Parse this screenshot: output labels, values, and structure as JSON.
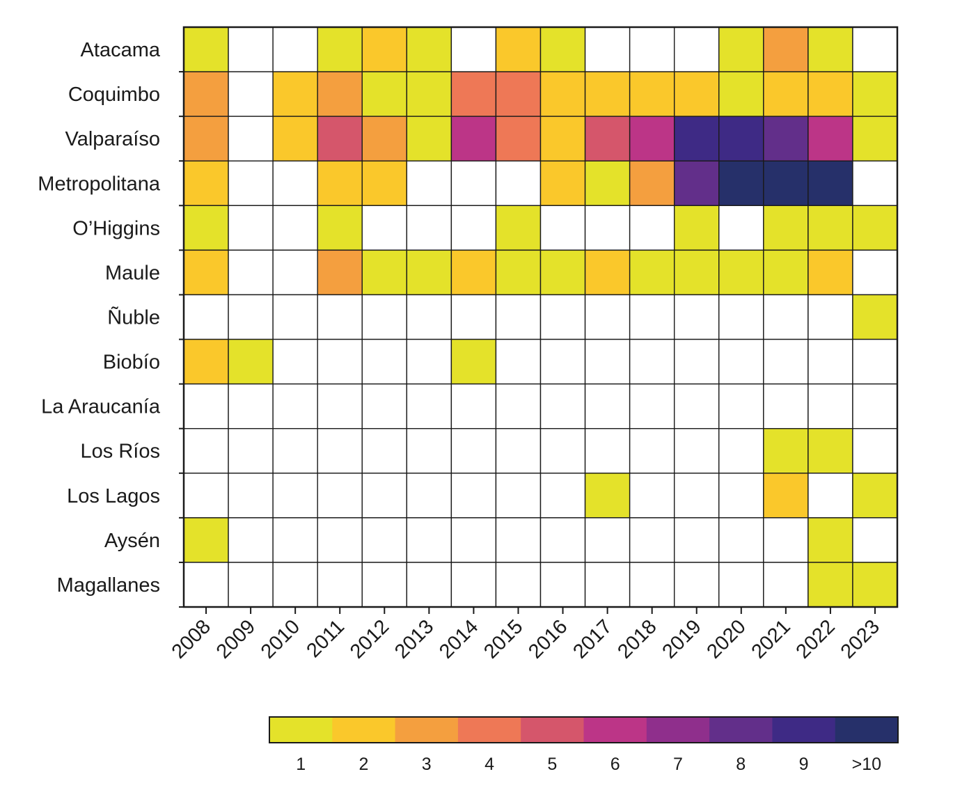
{
  "chart_data": {
    "type": "heatmap",
    "title": "",
    "xlabel": "",
    "ylabel": "",
    "x": [
      "2008",
      "2009",
      "2010",
      "2011",
      "2012",
      "2013",
      "2014",
      "2015",
      "2016",
      "2017",
      "2018",
      "2019",
      "2020",
      "2021",
      "2022",
      "2023"
    ],
    "y": [
      "Atacama",
      "Coquimbo",
      "Valparaíso",
      "Metropolitana",
      "O’Higgins",
      "Maule",
      "Ñuble",
      "Biobío",
      "La Araucanía",
      "Los Ríos",
      "Los Lagos",
      "Aysén",
      "Magallanes"
    ],
    "values": [
      [
        1,
        0,
        0,
        1,
        2,
        1,
        0,
        2,
        1,
        0,
        0,
        0,
        1,
        3,
        1,
        0
      ],
      [
        3,
        0,
        2,
        3,
        1,
        1,
        4,
        4,
        2,
        2,
        2,
        2,
        1,
        2,
        2,
        1
      ],
      [
        3,
        0,
        2,
        5,
        3,
        1,
        6,
        4,
        2,
        5,
        6,
        9,
        9,
        8,
        6,
        1
      ],
      [
        2,
        0,
        0,
        2,
        2,
        0,
        0,
        0,
        2,
        1,
        3,
        8,
        10,
        10,
        10,
        0
      ],
      [
        1,
        0,
        0,
        1,
        0,
        0,
        0,
        1,
        0,
        0,
        0,
        1,
        0,
        1,
        1,
        1
      ],
      [
        2,
        0,
        0,
        3,
        1,
        1,
        2,
        1,
        1,
        2,
        1,
        1,
        1,
        1,
        2,
        0
      ],
      [
        0,
        0,
        0,
        0,
        0,
        0,
        0,
        0,
        0,
        0,
        0,
        0,
        0,
        0,
        0,
        1
      ],
      [
        2,
        1,
        0,
        0,
        0,
        0,
        1,
        0,
        0,
        0,
        0,
        0,
        0,
        0,
        0,
        0
      ],
      [
        0,
        0,
        0,
        0,
        0,
        0,
        0,
        0,
        0,
        0,
        0,
        0,
        0,
        0,
        0,
        0
      ],
      [
        0,
        0,
        0,
        0,
        0,
        0,
        0,
        0,
        0,
        0,
        0,
        0,
        0,
        1,
        1,
        0
      ],
      [
        0,
        0,
        0,
        0,
        0,
        0,
        0,
        0,
        0,
        1,
        0,
        0,
        0,
        2,
        0,
        1
      ],
      [
        1,
        0,
        0,
        0,
        0,
        0,
        0,
        0,
        0,
        0,
        0,
        0,
        0,
        0,
        1,
        0
      ],
      [
        0,
        0,
        0,
        0,
        0,
        0,
        0,
        0,
        0,
        0,
        0,
        0,
        0,
        0,
        1,
        1
      ]
    ],
    "empty_color": "#ffffff",
    "colorbar": {
      "labels": [
        "1",
        "2",
        "3",
        "4",
        "5",
        "6",
        "7",
        "8",
        "9",
        ">10"
      ],
      "colors": [
        "#e4e22a",
        "#fac82b",
        "#f49f3f",
        "#ee7856",
        "#d5566b",
        "#bc3587",
        "#8f2f8c",
        "#622f8a",
        "#3e2a85",
        "#26306a"
      ],
      "placement": "bottom"
    }
  }
}
